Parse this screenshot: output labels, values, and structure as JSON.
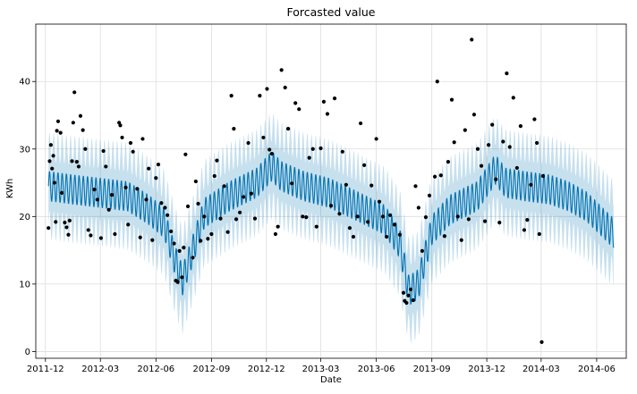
{
  "chart_data": {
    "type": "line",
    "title": "Forcasted value",
    "xlabel": "Date",
    "ylabel": "KWh",
    "x_ticks": [
      "2011-12",
      "2012-03",
      "2012-06",
      "2012-09",
      "2012-12",
      "2013-03",
      "2013-06",
      "2013-09",
      "2013-12",
      "2014-03",
      "2014-06"
    ],
    "y_ticks": [
      0,
      10,
      20,
      30,
      40
    ],
    "xlim": [
      "2011-11-15",
      "2014-07-20"
    ],
    "ylim": [
      -1,
      48.5
    ],
    "grid": true,
    "colors": {
      "forecast_line": "#0072B2",
      "interval": "#0072B2",
      "observed": "#000000",
      "grid": "#dddddd"
    },
    "forecast": {
      "start": "2011-12-06",
      "end": "2014-06-29",
      "weekly_amplitude": 2.2,
      "interval_halfwidth": 5.8,
      "trend_knots": [
        [
          "2011-12-06",
          24.5
        ],
        [
          "2012-01-15",
          24.0
        ],
        [
          "2012-03-01",
          23.5
        ],
        [
          "2012-04-15",
          23.0
        ],
        [
          "2012-05-20",
          21.0
        ],
        [
          "2012-06-15",
          19.0
        ],
        [
          "2012-07-01",
          14.0
        ],
        [
          "2012-07-15",
          10.5
        ],
        [
          "2012-08-01",
          15.0
        ],
        [
          "2012-08-20",
          20.5
        ],
        [
          "2012-10-01",
          23.0
        ],
        [
          "2012-11-15",
          25.0
        ],
        [
          "2012-12-10",
          27.5
        ],
        [
          "2012-12-25",
          26.0
        ],
        [
          "2013-02-01",
          24.5
        ],
        [
          "2013-03-15",
          23.5
        ],
        [
          "2013-05-01",
          21.5
        ],
        [
          "2013-06-15",
          19.5
        ],
        [
          "2013-07-10",
          16.0
        ],
        [
          "2013-07-25",
          9.0
        ],
        [
          "2013-08-10",
          10.0
        ],
        [
          "2013-09-01",
          18.0
        ],
        [
          "2013-10-01",
          21.0
        ],
        [
          "2013-11-15",
          23.0
        ],
        [
          "2013-12-15",
          27.0
        ],
        [
          "2014-01-01",
          25.0
        ],
        [
          "2014-02-01",
          24.5
        ],
        [
          "2014-03-15",
          24.0
        ],
        [
          "2014-04-15",
          23.0
        ],
        [
          "2014-05-15",
          21.5
        ],
        [
          "2014-06-29",
          17.5
        ]
      ]
    },
    "observed_points": [
      [
        "2011-12-06",
        18.3
      ],
      [
        "2011-12-08",
        28.2
      ],
      [
        "2011-12-10",
        30.6
      ],
      [
        "2011-12-12",
        27.1
      ],
      [
        "2011-12-14",
        29.0
      ],
      [
        "2011-12-16",
        25.0
      ],
      [
        "2011-12-18",
        19.2
      ],
      [
        "2011-12-20",
        32.7
      ],
      [
        "2011-12-22",
        34.1
      ],
      [
        "2011-12-26",
        32.4
      ],
      [
        "2011-12-28",
        23.5
      ],
      [
        "2012-01-02",
        19.1
      ],
      [
        "2012-01-05",
        18.4
      ],
      [
        "2012-01-08",
        17.3
      ],
      [
        "2012-01-10",
        19.4
      ],
      [
        "2012-01-14",
        28.2
      ],
      [
        "2012-01-16",
        33.9
      ],
      [
        "2012-01-18",
        38.4
      ],
      [
        "2012-01-22",
        28.1
      ],
      [
        "2012-01-25",
        27.4
      ],
      [
        "2012-01-28",
        34.9
      ],
      [
        "2012-02-01",
        32.8
      ],
      [
        "2012-02-05",
        30.0
      ],
      [
        "2012-02-10",
        18.0
      ],
      [
        "2012-02-14",
        17.2
      ],
      [
        "2012-02-20",
        24.0
      ],
      [
        "2012-02-25",
        22.5
      ],
      [
        "2012-03-02",
        16.8
      ],
      [
        "2012-03-06",
        29.7
      ],
      [
        "2012-03-10",
        27.4
      ],
      [
        "2012-03-15",
        21.0
      ],
      [
        "2012-03-20",
        23.2
      ],
      [
        "2012-03-25",
        17.4
      ],
      [
        "2012-04-01",
        33.9
      ],
      [
        "2012-04-03",
        33.5
      ],
      [
        "2012-04-06",
        31.7
      ],
      [
        "2012-04-12",
        24.3
      ],
      [
        "2012-04-16",
        18.8
      ],
      [
        "2012-04-20",
        30.9
      ],
      [
        "2012-04-24",
        29.6
      ],
      [
        "2012-05-01",
        24.1
      ],
      [
        "2012-05-06",
        16.9
      ],
      [
        "2012-05-10",
        31.5
      ],
      [
        "2012-05-16",
        22.5
      ],
      [
        "2012-05-20",
        27.1
      ],
      [
        "2012-05-26",
        16.5
      ],
      [
        "2012-06-01",
        25.7
      ],
      [
        "2012-06-05",
        27.7
      ],
      [
        "2012-06-10",
        22.0
      ],
      [
        "2012-06-16",
        21.3
      ],
      [
        "2012-06-20",
        20.2
      ],
      [
        "2012-06-26",
        17.8
      ],
      [
        "2012-07-01",
        16.0
      ],
      [
        "2012-07-04",
        10.5
      ],
      [
        "2012-07-07",
        10.3
      ],
      [
        "2012-07-10",
        14.9
      ],
      [
        "2012-07-14",
        11.0
      ],
      [
        "2012-07-17",
        15.4
      ],
      [
        "2012-07-20",
        29.2
      ],
      [
        "2012-07-24",
        21.5
      ],
      [
        "2012-08-01",
        13.9
      ],
      [
        "2012-08-06",
        25.2
      ],
      [
        "2012-08-10",
        21.9
      ],
      [
        "2012-08-14",
        16.4
      ],
      [
        "2012-08-20",
        20.0
      ],
      [
        "2012-08-26",
        16.7
      ],
      [
        "2012-09-01",
        17.4
      ],
      [
        "2012-09-06",
        26.0
      ],
      [
        "2012-09-10",
        28.3
      ],
      [
        "2012-09-16",
        19.7
      ],
      [
        "2012-09-22",
        24.5
      ],
      [
        "2012-09-28",
        17.7
      ],
      [
        "2012-10-04",
        37.9
      ],
      [
        "2012-10-08",
        33.0
      ],
      [
        "2012-10-12",
        19.6
      ],
      [
        "2012-10-18",
        20.6
      ],
      [
        "2012-10-24",
        22.9
      ],
      [
        "2012-11-01",
        30.9
      ],
      [
        "2012-11-06",
        23.4
      ],
      [
        "2012-11-12",
        19.7
      ],
      [
        "2012-11-20",
        37.9
      ],
      [
        "2012-11-26",
        31.7
      ],
      [
        "2012-12-02",
        38.9
      ],
      [
        "2012-12-06",
        29.9
      ],
      [
        "2012-12-10",
        29.3
      ],
      [
        "2012-12-16",
        17.4
      ],
      [
        "2012-12-20",
        18.5
      ],
      [
        "2012-12-26",
        41.7
      ],
      [
        "2013-01-01",
        39.1
      ],
      [
        "2013-01-06",
        33.0
      ],
      [
        "2013-01-12",
        24.9
      ],
      [
        "2013-01-18",
        36.8
      ],
      [
        "2013-01-24",
        35.9
      ],
      [
        "2013-01-30",
        20.0
      ],
      [
        "2013-02-05",
        19.9
      ],
      [
        "2013-02-10",
        28.7
      ],
      [
        "2013-02-16",
        30.0
      ],
      [
        "2013-02-22",
        18.5
      ],
      [
        "2013-03-01",
        30.1
      ],
      [
        "2013-03-06",
        37.0
      ],
      [
        "2013-03-12",
        35.2
      ],
      [
        "2013-03-18",
        21.6
      ],
      [
        "2013-03-24",
        37.5
      ],
      [
        "2013-04-01",
        20.4
      ],
      [
        "2013-04-06",
        29.6
      ],
      [
        "2013-04-12",
        24.7
      ],
      [
        "2013-04-18",
        18.3
      ],
      [
        "2013-04-24",
        17.0
      ],
      [
        "2013-05-01",
        20.0
      ],
      [
        "2013-05-06",
        33.8
      ],
      [
        "2013-05-12",
        27.6
      ],
      [
        "2013-05-18",
        19.2
      ],
      [
        "2013-05-24",
        24.6
      ],
      [
        "2013-06-01",
        31.5
      ],
      [
        "2013-06-06",
        22.2
      ],
      [
        "2013-06-12",
        20.0
      ],
      [
        "2013-06-18",
        17.0
      ],
      [
        "2013-06-24",
        20.2
      ],
      [
        "2013-07-01",
        18.8
      ],
      [
        "2013-07-10",
        17.3
      ],
      [
        "2013-07-16",
        8.7
      ],
      [
        "2013-07-18",
        7.5
      ],
      [
        "2013-07-21",
        7.2
      ],
      [
        "2013-07-24",
        8.3
      ],
      [
        "2013-07-28",
        9.2
      ],
      [
        "2013-08-01",
        7.6
      ],
      [
        "2013-08-05",
        24.5
      ],
      [
        "2013-08-10",
        21.3
      ],
      [
        "2013-08-16",
        14.9
      ],
      [
        "2013-08-22",
        19.9
      ],
      [
        "2013-08-28",
        23.1
      ],
      [
        "2013-09-06",
        25.9
      ],
      [
        "2013-09-10",
        40.0
      ],
      [
        "2013-09-16",
        26.1
      ],
      [
        "2013-09-22",
        17.1
      ],
      [
        "2013-09-28",
        28.1
      ],
      [
        "2013-10-04",
        37.3
      ],
      [
        "2013-10-08",
        31.0
      ],
      [
        "2013-10-14",
        20.0
      ],
      [
        "2013-10-20",
        16.5
      ],
      [
        "2013-10-26",
        32.8
      ],
      [
        "2013-11-01",
        19.6
      ],
      [
        "2013-11-06",
        46.2
      ],
      [
        "2013-11-10",
        35.1
      ],
      [
        "2013-11-16",
        30.0
      ],
      [
        "2013-11-22",
        27.5
      ],
      [
        "2013-11-28",
        19.3
      ],
      [
        "2013-12-04",
        30.6
      ],
      [
        "2013-12-10",
        33.6
      ],
      [
        "2013-12-16",
        25.5
      ],
      [
        "2013-12-22",
        19.1
      ],
      [
        "2013-12-28",
        31.1
      ],
      [
        "2014-01-03",
        41.2
      ],
      [
        "2014-01-08",
        30.3
      ],
      [
        "2014-01-14",
        37.6
      ],
      [
        "2014-01-20",
        27.2
      ],
      [
        "2014-01-26",
        33.4
      ],
      [
        "2014-02-01",
        18.0
      ],
      [
        "2014-02-06",
        19.5
      ],
      [
        "2014-02-12",
        24.7
      ],
      [
        "2014-02-18",
        34.4
      ],
      [
        "2014-02-22",
        30.9
      ],
      [
        "2014-02-26",
        17.4
      ],
      [
        "2014-03-02",
        1.4
      ],
      [
        "2014-03-04",
        26.0
      ]
    ]
  }
}
